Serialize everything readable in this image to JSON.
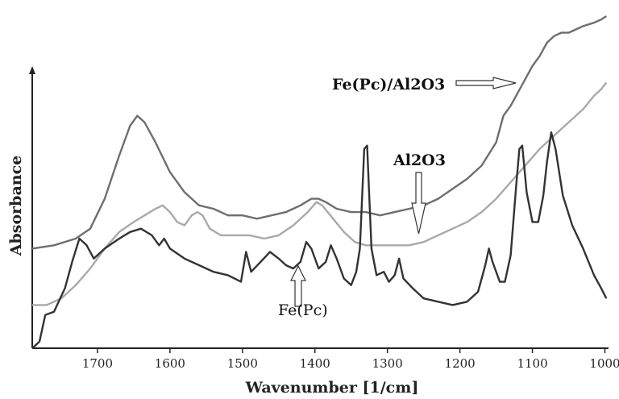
{
  "chart_data": {
    "type": "line",
    "title": "",
    "xlabel": "Wavenumber [1/cm]",
    "ylabel": "Absorbance",
    "xlim": [
      1790,
      995
    ],
    "ylim": [
      0,
      1
    ],
    "x_reversed": true,
    "y_ticks_shown": false,
    "grid": false,
    "x_ticks": [
      1700,
      1600,
      1500,
      1400,
      1300,
      1200,
      1100,
      1000
    ],
    "series": [
      {
        "name": "Fe(Pc)/Al2O3",
        "color": "#6e6e6e",
        "points": [
          [
            1790,
            0.3
          ],
          [
            1760,
            0.31
          ],
          [
            1730,
            0.33
          ],
          [
            1710,
            0.36
          ],
          [
            1690,
            0.45
          ],
          [
            1670,
            0.58
          ],
          [
            1655,
            0.67
          ],
          [
            1645,
            0.7
          ],
          [
            1635,
            0.68
          ],
          [
            1620,
            0.62
          ],
          [
            1600,
            0.53
          ],
          [
            1580,
            0.47
          ],
          [
            1560,
            0.43
          ],
          [
            1540,
            0.42
          ],
          [
            1520,
            0.4
          ],
          [
            1500,
            0.4
          ],
          [
            1480,
            0.39
          ],
          [
            1460,
            0.4
          ],
          [
            1440,
            0.41
          ],
          [
            1420,
            0.43
          ],
          [
            1405,
            0.45
          ],
          [
            1395,
            0.45
          ],
          [
            1385,
            0.44
          ],
          [
            1370,
            0.42
          ],
          [
            1350,
            0.41
          ],
          [
            1330,
            0.41
          ],
          [
            1310,
            0.4
          ],
          [
            1290,
            0.41
          ],
          [
            1270,
            0.42
          ],
          [
            1250,
            0.43
          ],
          [
            1230,
            0.45
          ],
          [
            1210,
            0.48
          ],
          [
            1190,
            0.51
          ],
          [
            1170,
            0.55
          ],
          [
            1150,
            0.62
          ],
          [
            1140,
            0.7
          ],
          [
            1130,
            0.73
          ],
          [
            1120,
            0.77
          ],
          [
            1110,
            0.81
          ],
          [
            1100,
            0.85
          ],
          [
            1090,
            0.88
          ],
          [
            1080,
            0.92
          ],
          [
            1070,
            0.94
          ],
          [
            1060,
            0.95
          ],
          [
            1050,
            0.95
          ],
          [
            1040,
            0.96
          ],
          [
            1030,
            0.97
          ],
          [
            1015,
            0.98
          ],
          [
            1005,
            0.99
          ],
          [
            998,
            1.0
          ]
        ]
      },
      {
        "name": "Al2O3",
        "color": "#a9a9a9",
        "points": [
          [
            1790,
            0.13
          ],
          [
            1770,
            0.13
          ],
          [
            1750,
            0.15
          ],
          [
            1730,
            0.19
          ],
          [
            1710,
            0.24
          ],
          [
            1690,
            0.3
          ],
          [
            1670,
            0.35
          ],
          [
            1650,
            0.38
          ],
          [
            1635,
            0.4
          ],
          [
            1620,
            0.42
          ],
          [
            1610,
            0.43
          ],
          [
            1600,
            0.41
          ],
          [
            1590,
            0.38
          ],
          [
            1580,
            0.37
          ],
          [
            1570,
            0.4
          ],
          [
            1562,
            0.41
          ],
          [
            1555,
            0.4
          ],
          [
            1545,
            0.36
          ],
          [
            1530,
            0.34
          ],
          [
            1510,
            0.34
          ],
          [
            1490,
            0.34
          ],
          [
            1470,
            0.33
          ],
          [
            1450,
            0.34
          ],
          [
            1430,
            0.37
          ],
          [
            1410,
            0.41
          ],
          [
            1398,
            0.44
          ],
          [
            1390,
            0.43
          ],
          [
            1375,
            0.39
          ],
          [
            1360,
            0.35
          ],
          [
            1345,
            0.32
          ],
          [
            1330,
            0.31
          ],
          [
            1310,
            0.31
          ],
          [
            1290,
            0.31
          ],
          [
            1270,
            0.31
          ],
          [
            1250,
            0.32
          ],
          [
            1230,
            0.34
          ],
          [
            1210,
            0.36
          ],
          [
            1190,
            0.38
          ],
          [
            1170,
            0.41
          ],
          [
            1150,
            0.45
          ],
          [
            1130,
            0.5
          ],
          [
            1110,
            0.55
          ],
          [
            1090,
            0.6
          ],
          [
            1070,
            0.64
          ],
          [
            1050,
            0.68
          ],
          [
            1030,
            0.72
          ],
          [
            1015,
            0.76
          ],
          [
            1005,
            0.78
          ],
          [
            998,
            0.8
          ]
        ]
      },
      {
        "name": "Fe(Pc)",
        "color": "#333333",
        "points": [
          [
            1790,
            0.0
          ],
          [
            1780,
            0.02
          ],
          [
            1772,
            0.1
          ],
          [
            1760,
            0.11
          ],
          [
            1745,
            0.18
          ],
          [
            1735,
            0.26
          ],
          [
            1725,
            0.33
          ],
          [
            1715,
            0.31
          ],
          [
            1705,
            0.27
          ],
          [
            1690,
            0.3
          ],
          [
            1670,
            0.33
          ],
          [
            1655,
            0.35
          ],
          [
            1640,
            0.36
          ],
          [
            1625,
            0.34
          ],
          [
            1615,
            0.31
          ],
          [
            1608,
            0.33
          ],
          [
            1600,
            0.3
          ],
          [
            1580,
            0.27
          ],
          [
            1560,
            0.25
          ],
          [
            1540,
            0.23
          ],
          [
            1520,
            0.22
          ],
          [
            1502,
            0.2
          ],
          [
            1495,
            0.29
          ],
          [
            1488,
            0.23
          ],
          [
            1475,
            0.26
          ],
          [
            1462,
            0.29
          ],
          [
            1450,
            0.27
          ],
          [
            1440,
            0.25
          ],
          [
            1430,
            0.24
          ],
          [
            1420,
            0.26
          ],
          [
            1412,
            0.32
          ],
          [
            1405,
            0.3
          ],
          [
            1395,
            0.24
          ],
          [
            1385,
            0.26
          ],
          [
            1378,
            0.31
          ],
          [
            1370,
            0.27
          ],
          [
            1360,
            0.21
          ],
          [
            1350,
            0.19
          ],
          [
            1343,
            0.23
          ],
          [
            1338,
            0.3
          ],
          [
            1332,
            0.6
          ],
          [
            1328,
            0.61
          ],
          [
            1322,
            0.3
          ],
          [
            1315,
            0.22
          ],
          [
            1305,
            0.23
          ],
          [
            1298,
            0.2
          ],
          [
            1290,
            0.22
          ],
          [
            1284,
            0.27
          ],
          [
            1278,
            0.21
          ],
          [
            1265,
            0.18
          ],
          [
            1250,
            0.15
          ],
          [
            1230,
            0.14
          ],
          [
            1210,
            0.13
          ],
          [
            1190,
            0.14
          ],
          [
            1175,
            0.17
          ],
          [
            1165,
            0.25
          ],
          [
            1160,
            0.3
          ],
          [
            1155,
            0.26
          ],
          [
            1145,
            0.2
          ],
          [
            1138,
            0.2
          ],
          [
            1130,
            0.28
          ],
          [
            1122,
            0.5
          ],
          [
            1118,
            0.6
          ],
          [
            1114,
            0.61
          ],
          [
            1108,
            0.47
          ],
          [
            1100,
            0.38
          ],
          [
            1092,
            0.38
          ],
          [
            1085,
            0.46
          ],
          [
            1080,
            0.56
          ],
          [
            1074,
            0.65
          ],
          [
            1068,
            0.6
          ],
          [
            1058,
            0.46
          ],
          [
            1045,
            0.37
          ],
          [
            1030,
            0.3
          ],
          [
            1015,
            0.22
          ],
          [
            1005,
            0.18
          ],
          [
            998,
            0.15
          ]
        ]
      }
    ]
  },
  "annotations": {
    "fepc_al2o3_label": "Fe(Pc)/Al2O3",
    "al2o3_label": "Al2O3",
    "fepc_label": "Fe(Pc)"
  }
}
